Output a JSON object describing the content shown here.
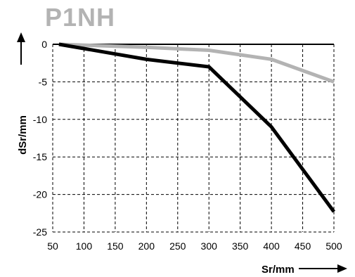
{
  "chart_data": {
    "type": "line",
    "title": "P1NH",
    "xlabel": "Sr/mm",
    "ylabel": "dSr/mm",
    "xlim": [
      50,
      500
    ],
    "ylim": [
      -25,
      0
    ],
    "xticks": [
      50,
      100,
      150,
      200,
      250,
      300,
      350,
      400,
      450,
      500
    ],
    "yticks": [
      0,
      -5,
      -10,
      -15,
      -20,
      -25
    ],
    "grid": true,
    "grid_style": "dashed",
    "series": [
      {
        "color": "#000000",
        "x": [
          60,
          200,
          300,
          400,
          500
        ],
        "y": [
          0,
          -2,
          -3,
          -11,
          -22.3
        ]
      },
      {
        "color": "#b3b3b3",
        "x": [
          60,
          200,
          300,
          400,
          500
        ],
        "y": [
          0,
          -0.4,
          -0.8,
          -2,
          -5
        ]
      }
    ]
  }
}
